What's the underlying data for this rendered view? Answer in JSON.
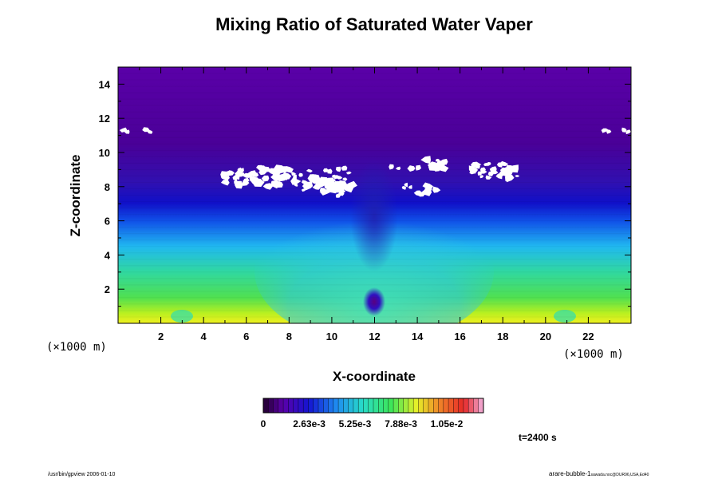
{
  "chart_data": {
    "type": "heatmap",
    "title": "Mixing Ratio of Saturated Water Vaper",
    "xlabel": "X-coordinate",
    "ylabel": "Z-coordinate",
    "x_unit": "(×1000 m)",
    "z_unit": "(×1000 m)",
    "xlim": [
      0,
      24
    ],
    "ylim": [
      0,
      15
    ],
    "x_ticks": [
      "2",
      "4",
      "6",
      "8",
      "10",
      "12",
      "14",
      "16",
      "18",
      "20",
      "22"
    ],
    "y_ticks": [
      "2",
      "4",
      "6",
      "8",
      "10",
      "12",
      "14"
    ],
    "colorbar": {
      "min": 0,
      "max": 0.0126,
      "labels": [
        "0",
        "2.63e-3",
        "5.25e-3",
        "7.88e-3",
        "1.05e-2"
      ]
    },
    "time_label": "t=2400 s"
  },
  "footer": {
    "left": "/usr/bin/gpview 2006-01-10",
    "right_main": "arare-bubble-1",
    "right_small": "sawada.noc@DUR96,USA,Ed40"
  },
  "colors": {
    "background": "#ffffff",
    "low": "#4a0090",
    "mid_blue": "#1010d0",
    "cyan": "#20d0c0",
    "green": "#40e060",
    "yellow": "#f0f020"
  }
}
